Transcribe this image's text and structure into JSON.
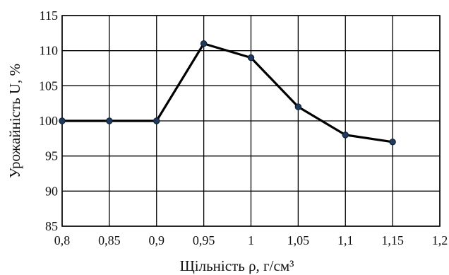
{
  "chart_data": {
    "type": "line",
    "xlabel": "Щільність  ρ, г/см³",
    "ylabel": "Урожайність U, %",
    "xlim": [
      0.8,
      1.2
    ],
    "ylim": [
      85,
      115
    ],
    "x_ticks": [
      0.8,
      0.85,
      0.9,
      0.95,
      1.0,
      1.05,
      1.1,
      1.15,
      1.2
    ],
    "x_tick_labels": [
      "0,8",
      "0,85",
      "0,9",
      "0,95",
      "1",
      "1,05",
      "1,1",
      "1,15",
      "1,2"
    ],
    "y_ticks": [
      85,
      90,
      95,
      100,
      105,
      110,
      115
    ],
    "y_tick_labels": [
      "85",
      "90",
      "95",
      "100",
      "105",
      "110",
      "115"
    ],
    "grid": true,
    "legend": "none",
    "series": [
      {
        "x": [
          0.8,
          0.85,
          0.9,
          0.95,
          1.0,
          1.05,
          1.1,
          1.15
        ],
        "y": [
          100,
          100,
          100,
          111,
          109,
          102,
          98,
          97
        ],
        "color": "#000000",
        "marker_color": "#1f3a5c"
      }
    ]
  }
}
